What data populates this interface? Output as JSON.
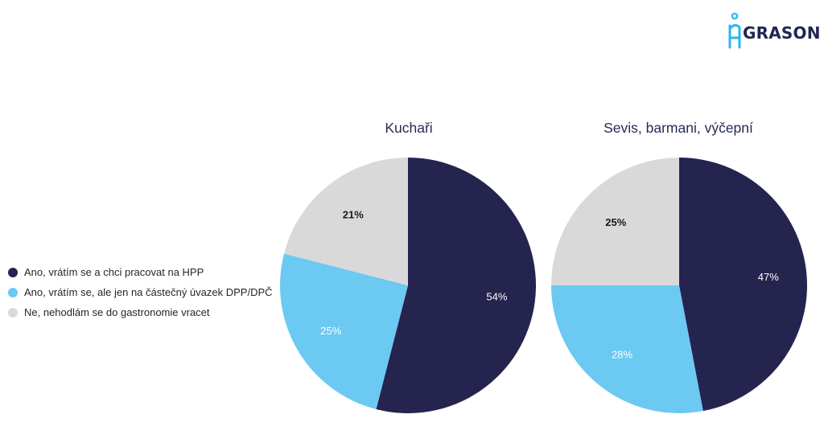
{
  "brand": {
    "name": "GRASON",
    "color": "#2cb5ef",
    "text_color": "#1f2653"
  },
  "colors": [
    "#25244f",
    "#6bc9f2",
    "#d9d9d9"
  ],
  "label_colors": [
    "#ffffff",
    "#ffffff",
    "#1a1a1a"
  ],
  "chart_data": [
    {
      "type": "pie",
      "title": "Kuchaři",
      "categories": [
        "Ano, vrátím se a chci pracovat na HPP",
        "Ano, vrátím se, ale jen na částečný úvazek DPP/DPČ",
        "Ne, nehodlám se do gastronomie vracet"
      ],
      "values": [
        54,
        25,
        21
      ],
      "data_labels": [
        "54%",
        "25%",
        "21%"
      ],
      "legend": "left"
    },
    {
      "type": "pie",
      "title": "Sevis, barmani, výčepní",
      "categories": [
        "Ano, vrátím se a chci pracovat na HPP",
        "Ano, vrátím se, ale jen na částečný úvazek DPP/DPČ",
        "Ne, nehodlám se do gastronomie vracet"
      ],
      "values": [
        47,
        28,
        25
      ],
      "data_labels": [
        "47%",
        "28%",
        "25%"
      ],
      "legend": "left"
    }
  ]
}
